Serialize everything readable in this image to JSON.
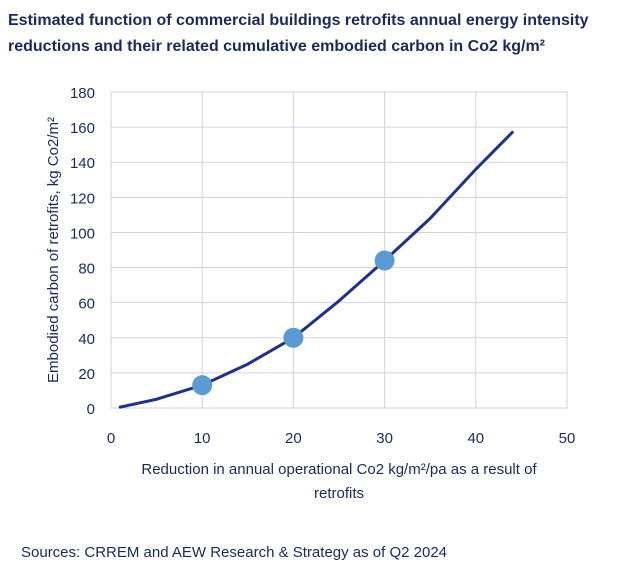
{
  "title_line1": "Estimated function of commercial buildings retrofits annual energy intensity",
  "title_line2": "reductions and their related cumulative embodied carbon in Co2 kg/m²",
  "source": "Sources: CRREM and AEW Research & Strategy as of Q2 2024",
  "colors": {
    "line": "#1f2f94",
    "marker": "#5b9bd5",
    "grid": "#cfd3e6",
    "text": "#1a2a5e"
  },
  "chart_data": {
    "type": "line",
    "xlabel_line1": "Reduction in annual operational Co2 kg/m²/pa as a result of",
    "xlabel_line2": "retrofits",
    "ylabel": "Embodied carbon of retrofits, kg Co2/m²",
    "xlim": [
      0,
      50
    ],
    "ylim": [
      0,
      180
    ],
    "xticks": [
      0,
      10,
      20,
      30,
      40,
      50
    ],
    "yticks": [
      0,
      20,
      40,
      60,
      80,
      100,
      120,
      140,
      160,
      180
    ],
    "grid": true,
    "curve": {
      "x": [
        1,
        5,
        10,
        15,
        20,
        25,
        30,
        35,
        40,
        44
      ],
      "y": [
        0.5,
        5,
        13,
        25,
        40,
        61,
        84,
        108,
        136,
        157
      ]
    },
    "markers": {
      "x": [
        10,
        20,
        30
      ],
      "y": [
        13,
        40,
        84
      ]
    }
  }
}
